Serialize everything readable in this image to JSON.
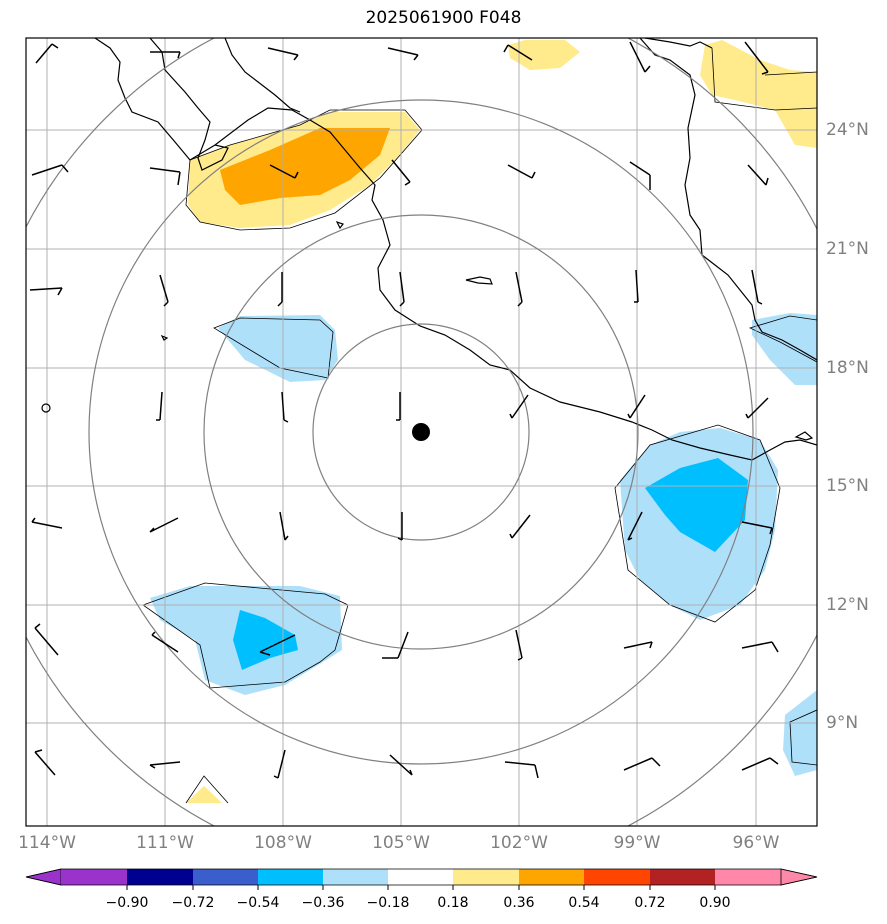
{
  "title": "2025061900 F048",
  "lon_labels": [
    "114°W",
    "111°W",
    "108°W",
    "105°W",
    "102°W",
    "99°W",
    "96°W"
  ],
  "lat_labels": [
    "24°N",
    "21°N",
    "18°N",
    "15°N",
    "12°N",
    "9°N"
  ],
  "colorbar": {
    "labels": [
      "−0.90",
      "−0.72",
      "−0.54",
      "−0.36",
      "−0.18",
      "0.18",
      "0.36",
      "0.54",
      "0.72",
      "0.90"
    ],
    "colors": [
      "#9933cc",
      "#000090",
      "#3a5fcd",
      "#00bfff",
      "#afe0fa",
      "#ffffff",
      "#ffea8c",
      "#ffa500",
      "#ff4500",
      "#b22222",
      "#ff88aa"
    ]
  },
  "field_colors": {
    "light_yellow": "#ffea8c",
    "orange": "#ffa500",
    "light_blue": "#afe0fa",
    "blue": "#00bfff"
  },
  "marker": {
    "lon": -104.5,
    "lat": 16.3,
    "label_icon": "storm-center-dot-icon"
  }
}
